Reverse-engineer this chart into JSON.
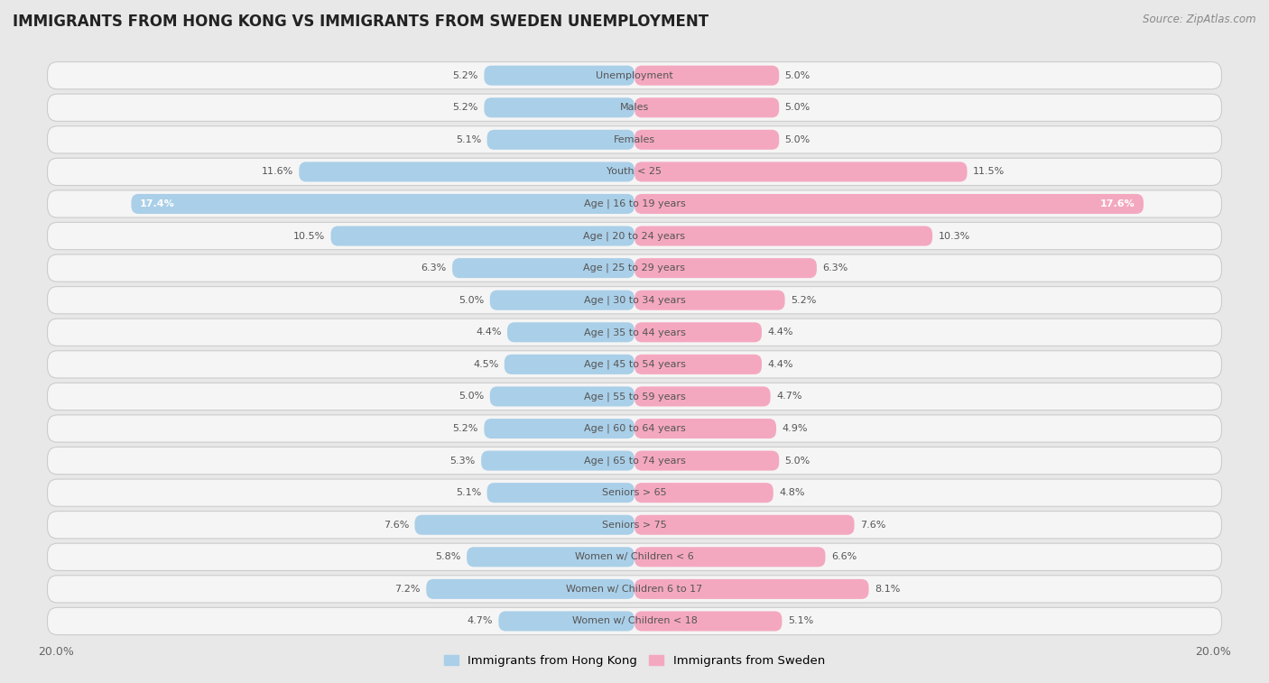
{
  "title": "IMMIGRANTS FROM HONG KONG VS IMMIGRANTS FROM SWEDEN UNEMPLOYMENT",
  "source": "Source: ZipAtlas.com",
  "categories": [
    "Unemployment",
    "Males",
    "Females",
    "Youth < 25",
    "Age | 16 to 19 years",
    "Age | 20 to 24 years",
    "Age | 25 to 29 years",
    "Age | 30 to 34 years",
    "Age | 35 to 44 years",
    "Age | 45 to 54 years",
    "Age | 55 to 59 years",
    "Age | 60 to 64 years",
    "Age | 65 to 74 years",
    "Seniors > 65",
    "Seniors > 75",
    "Women w/ Children < 6",
    "Women w/ Children 6 to 17",
    "Women w/ Children < 18"
  ],
  "hong_kong": [
    5.2,
    5.2,
    5.1,
    11.6,
    17.4,
    10.5,
    6.3,
    5.0,
    4.4,
    4.5,
    5.0,
    5.2,
    5.3,
    5.1,
    7.6,
    5.8,
    7.2,
    4.7
  ],
  "sweden": [
    5.0,
    5.0,
    5.0,
    11.5,
    17.6,
    10.3,
    6.3,
    5.2,
    4.4,
    4.4,
    4.7,
    4.9,
    5.0,
    4.8,
    7.6,
    6.6,
    8.1,
    5.1
  ],
  "hk_color": "#aacfe8",
  "sw_color": "#f4a8c0",
  "hk_highlight_color": "#5b9fd6",
  "sw_highlight_color": "#e8659a",
  "bg_color": "#e8e8e8",
  "row_bg_color": "#f5f5f5",
  "row_border_color": "#cccccc",
  "label_color": "#555555",
  "max_val": 20.0,
  "title_fontsize": 12,
  "source_fontsize": 8.5,
  "legend_fontsize": 9.5,
  "axis_fontsize": 9,
  "bar_label_fontsize": 8,
  "category_fontsize": 8,
  "legend_label_hk": "Immigrants from Hong Kong",
  "legend_label_sw": "Immigrants from Sweden"
}
